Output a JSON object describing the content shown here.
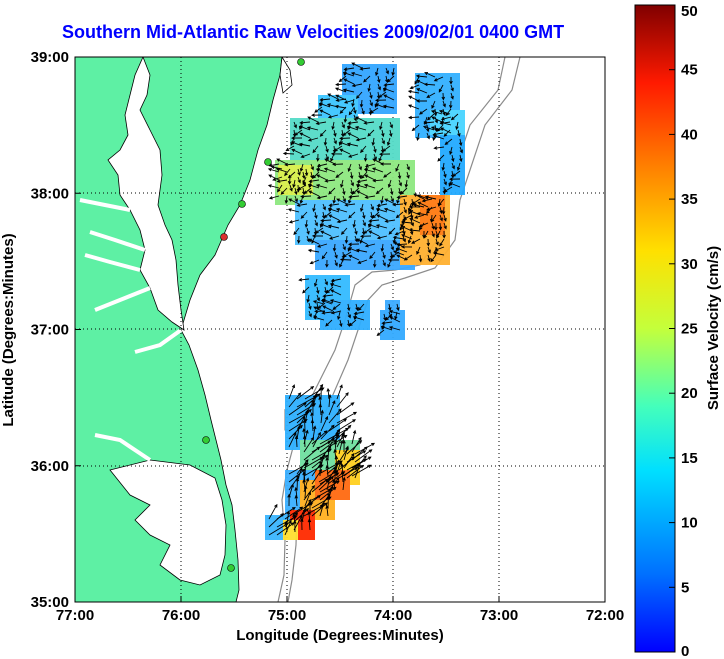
{
  "title": "Southern Mid-Atlantic Raw Velocities 2009/02/01 0400 GMT",
  "x_axis": {
    "label": "Longitude (Degrees:Minutes)",
    "ticks": [
      "77:00",
      "76:00",
      "75:00",
      "74:00",
      "73:00",
      "72:00"
    ],
    "range": [
      -77,
      -72
    ]
  },
  "y_axis": {
    "label": "Latitude (Degrees:Minutes)",
    "ticks": [
      "39:00",
      "38:00",
      "37:00",
      "36:00",
      "35:00"
    ],
    "range": [
      35,
      39
    ]
  },
  "colorbar": {
    "label": "Surface Velocity (cm/s)",
    "ticks": [
      "50",
      "45",
      "40",
      "35",
      "30",
      "25",
      "20",
      "15",
      "10",
      "5",
      "0"
    ],
    "range": [
      0,
      50
    ],
    "colormap": "jet"
  },
  "grid": "dotted",
  "colors": {
    "land": "#5ef0a4",
    "ocean": "#ffffff",
    "bathymetry": "#8c8c8c",
    "title": "#0000ff",
    "station_marker": "#33cc33",
    "station_marker_alt": "#d93030",
    "vectors": "#000000"
  }
}
